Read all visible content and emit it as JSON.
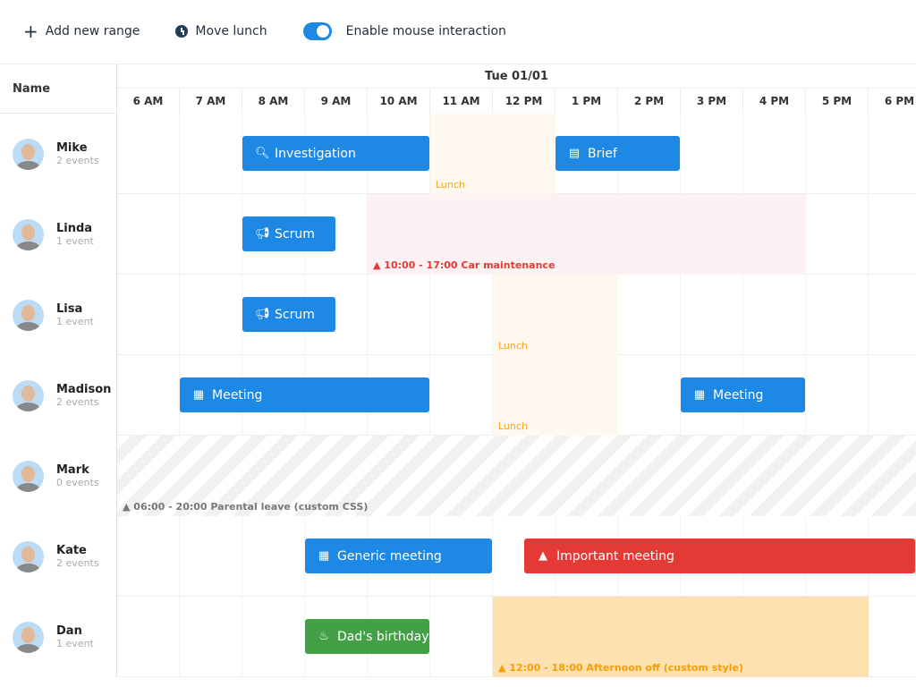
{
  "toolbar": {
    "add_label": "Add new range",
    "move_label": "Move lunch",
    "toggle_label": "Enable mouse interaction",
    "toggle_on": true
  },
  "header": {
    "name_col": "Name",
    "date": "Tue 01/01",
    "hours": [
      "6 AM",
      "7 AM",
      "8 AM",
      "9 AM",
      "10 AM",
      "11 AM",
      "12 PM",
      "1 PM",
      "2 PM",
      "3 PM",
      "4 PM",
      "5 PM",
      "6 PM"
    ]
  },
  "colors": {
    "blue": "#1e88e5",
    "red": "#e53935",
    "green": "#43a047",
    "lunch": "#fff8ee",
    "lunch_text": "#f5a623",
    "maint_bg": "#fdf2f3",
    "maint_text": "#e53935",
    "off_bg": "#fde1b0",
    "off_text": "#f59e0b"
  },
  "resources": [
    {
      "name": "Mike",
      "events_label": "2 events",
      "events": [
        {
          "name": "Investigation",
          "icon": "search-icon",
          "start": 8,
          "end": 11,
          "color": "blue"
        },
        {
          "name": "Brief",
          "icon": "newspaper-icon",
          "start": 13,
          "end": 15,
          "color": "blue"
        }
      ],
      "ranges": [
        {
          "label": "Lunch",
          "start": 11,
          "end": 13,
          "style": "lunch"
        }
      ]
    },
    {
      "name": "Linda",
      "events_label": "1 event",
      "events": [
        {
          "name": "Scrum",
          "icon": "bullhorn-icon",
          "start": 8,
          "end": 9.5,
          "color": "blue"
        }
      ],
      "ranges": [
        {
          "label": "10:00 - 17:00 Car maintenance",
          "start": 10,
          "end": 17,
          "style": "maint"
        }
      ]
    },
    {
      "name": "Lisa",
      "events_label": "1 event",
      "events": [
        {
          "name": "Scrum",
          "icon": "bullhorn-icon",
          "start": 8,
          "end": 9.5,
          "color": "blue"
        }
      ],
      "ranges": [
        {
          "label": "Lunch",
          "start": 12,
          "end": 14,
          "style": "lunch"
        }
      ]
    },
    {
      "name": "Madison",
      "events_label": "2 events",
      "events": [
        {
          "name": "Meeting",
          "icon": "calendar-icon",
          "start": 7,
          "end": 11,
          "color": "blue"
        },
        {
          "name": "Meeting",
          "icon": "calendar-icon",
          "start": 15,
          "end": 17,
          "color": "blue"
        }
      ],
      "ranges": [
        {
          "label": "Lunch",
          "start": 12,
          "end": 14,
          "style": "lunch"
        }
      ]
    },
    {
      "name": "Mark",
      "events_label": "0 events",
      "events": [],
      "ranges": [
        {
          "label": "06:00 - 20:00 Parental leave (custom CSS)",
          "start": 6,
          "end": 20,
          "style": "hatch"
        }
      ]
    },
    {
      "name": "Kate",
      "events_label": "2 events",
      "events": [
        {
          "name": "Generic meeting",
          "icon": "calendar-icon",
          "start": 9,
          "end": 12,
          "color": "blue"
        },
        {
          "name": "Important meeting",
          "icon": "warning-icon",
          "start": 12.5,
          "end": 20,
          "color": "red"
        }
      ],
      "ranges": []
    },
    {
      "name": "Dan",
      "events_label": "1 event",
      "events": [
        {
          "name": "Dad's birthday",
          "icon": "cake-icon",
          "start": 9,
          "end": 11,
          "color": "green"
        }
      ],
      "ranges": [
        {
          "label": "12:00 - 18:00 Afternoon off (custom style)",
          "start": 12,
          "end": 18,
          "style": "off"
        }
      ]
    }
  ]
}
